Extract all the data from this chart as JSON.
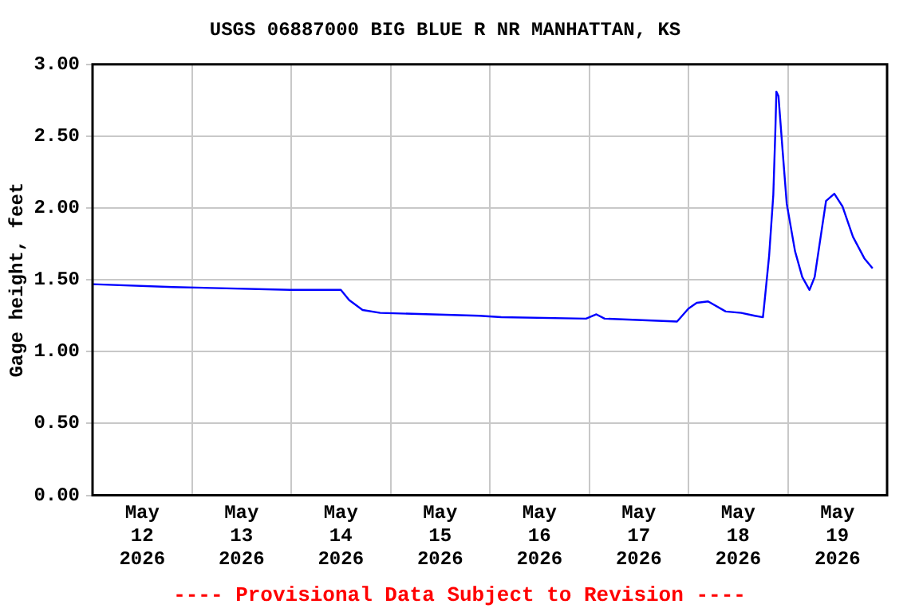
{
  "chart_data": {
    "type": "line",
    "title": "USGS 06887000 BIG BLUE R NR MANHATTAN, KS",
    "ylabel": "Gage height, feet",
    "annotations": [
      "---- Provisional Data Subject to Revision ----"
    ],
    "x": [
      "2026-05-12T00:00",
      "2026-05-12T19:30",
      "2026-05-13T23:45",
      "2026-05-14T12:00",
      "2026-05-14T14:00",
      "2026-05-14T17:15",
      "2026-05-14T21:30",
      "2026-05-15T21:30",
      "2026-05-16T02:45",
      "2026-05-16T23:15",
      "2026-05-17T01:45",
      "2026-05-17T03:45",
      "2026-05-17T21:15",
      "2026-05-18T00:00",
      "2026-05-18T02:00",
      "2026-05-18T04:45",
      "2026-05-18T09:00",
      "2026-05-18T12:45",
      "2026-05-18T16:00",
      "2026-05-18T18:00",
      "2026-05-18T18:30",
      "2026-05-18T19:30",
      "2026-05-18T20:30",
      "2026-05-18T21:00",
      "2026-05-18T21:15",
      "2026-05-18T21:45",
      "2026-05-18T22:45",
      "2026-05-18T23:45",
      "2026-05-19T01:45",
      "2026-05-19T03:30",
      "2026-05-19T05:15",
      "2026-05-19T06:30",
      "2026-05-19T08:00",
      "2026-05-19T09:15",
      "2026-05-19T11:15",
      "2026-05-19T13:15",
      "2026-05-19T15:45",
      "2026-05-19T18:30",
      "2026-05-19T20:30"
    ],
    "series": [
      {
        "color": "#0000ff",
        "values": [
          1.47,
          1.45,
          1.43,
          1.43,
          1.36,
          1.29,
          1.27,
          1.25,
          1.24,
          1.23,
          1.26,
          1.23,
          1.21,
          1.3,
          1.34,
          1.35,
          1.28,
          1.27,
          1.25,
          1.24,
          1.38,
          1.67,
          2.09,
          2.54,
          2.81,
          2.78,
          2.4,
          2.03,
          1.7,
          1.52,
          1.43,
          1.52,
          1.81,
          2.05,
          2.1,
          2.01,
          1.8,
          1.65,
          1.58
        ]
      }
    ],
    "xlim": [
      "2026-05-12T00:00",
      "2026-05-20T00:00"
    ],
    "xticks": [
      {
        "value": "2026-05-12T00:00",
        "label": null
      },
      {
        "value": "2026-05-12T12:00",
        "label": "May\n12\n2026"
      },
      {
        "value": "2026-05-13T00:00",
        "label": null
      },
      {
        "value": "2026-05-13T12:00",
        "label": "May\n13\n2026"
      },
      {
        "value": "2026-05-14T00:00",
        "label": null
      },
      {
        "value": "2026-05-14T12:00",
        "label": "May\n14\n2026"
      },
      {
        "value": "2026-05-15T00:00",
        "label": null
      },
      {
        "value": "2026-05-15T12:00",
        "label": "May\n15\n2026"
      },
      {
        "value": "2026-05-16T00:00",
        "label": null
      },
      {
        "value": "2026-05-16T12:00",
        "label": "May\n16\n2026"
      },
      {
        "value": "2026-05-17T00:00",
        "label": null
      },
      {
        "value": "2026-05-17T12:00",
        "label": "May\n17\n2026"
      },
      {
        "value": "2026-05-18T00:00",
        "label": null
      },
      {
        "value": "2026-05-18T12:00",
        "label": "May\n18\n2026"
      },
      {
        "value": "2026-05-19T00:00",
        "label": null
      },
      {
        "value": "2026-05-19T12:00",
        "label": "May\n19\n2026"
      },
      {
        "value": "2026-05-20T00:00",
        "label": null
      }
    ],
    "ylim": [
      0,
      3
    ],
    "yticks": [
      {
        "value": 0,
        "label": "0.00"
      },
      {
        "value": 0.5,
        "label": "0.50"
      },
      {
        "value": 1,
        "label": "1.00"
      },
      {
        "value": 1.5,
        "label": "1.50"
      },
      {
        "value": 2,
        "label": "2.00"
      },
      {
        "value": 2.5,
        "label": "2.50"
      },
      {
        "value": 3,
        "label": "3.00"
      }
    ],
    "grid": true,
    "marker": "none",
    "line_style": "solid",
    "legend": false
  }
}
